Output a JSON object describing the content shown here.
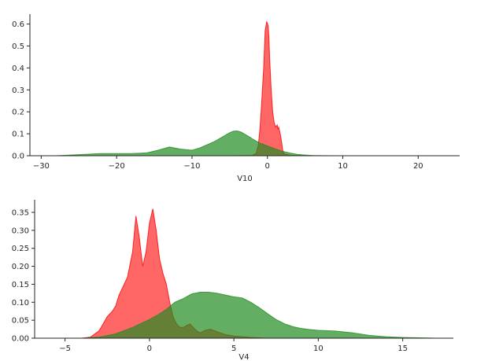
{
  "chart_data": [
    {
      "type": "area",
      "xlabel": "V10",
      "ylabel": "",
      "xlim": [
        -31.5,
        25.5
      ],
      "ylim": [
        0,
        0.645
      ],
      "xticks": [
        -30,
        -20,
        -10,
        0,
        10,
        20
      ],
      "xtick_labels": [
        "−30",
        "−20",
        "−10",
        "0",
        "10",
        "20"
      ],
      "yticks": [
        0.0,
        0.1,
        0.2,
        0.3,
        0.4,
        0.5,
        0.6
      ],
      "ytick_labels": [
        "0.0",
        "0.1",
        "0.2",
        "0.3",
        "0.4",
        "0.5",
        "0.6"
      ],
      "grid": false,
      "series": [
        {
          "color": "#ff0000",
          "fill_opacity": 0.6,
          "x": [
            -15,
            -5,
            -2,
            -1.5,
            -1.2,
            -1.0,
            -0.8,
            -0.5,
            -0.3,
            -0.1,
            0.0,
            0.1,
            0.2,
            0.3,
            0.5,
            0.7,
            0.9,
            1.1,
            1.3,
            1.4,
            1.5,
            1.7,
            1.9,
            2.0,
            2.2,
            3,
            5,
            10,
            20,
            24
          ],
          "values": [
            0,
            0,
            0.002,
            0.01,
            0.05,
            0.12,
            0.22,
            0.4,
            0.57,
            0.61,
            0.605,
            0.59,
            0.54,
            0.44,
            0.3,
            0.2,
            0.15,
            0.13,
            0.14,
            0.12,
            0.13,
            0.1,
            0.06,
            0.03,
            0.008,
            0.002,
            0.0005,
            0.0002,
            0.0001,
            0
          ]
        },
        {
          "color": "#228b22",
          "fill_opacity": 0.7,
          "x": [
            -28,
            -25,
            -22,
            -20,
            -18,
            -16,
            -14.5,
            -13,
            -11.5,
            -10,
            -9,
            -8,
            -7,
            -6,
            -5,
            -4.5,
            -4,
            -3.5,
            -3,
            -2.5,
            -2,
            -1.5,
            -1,
            0,
            1,
            2,
            3,
            4,
            5,
            6,
            7.5
          ],
          "values": [
            0,
            0.005,
            0.01,
            0.01,
            0.01,
            0.013,
            0.025,
            0.04,
            0.03,
            0.025,
            0.035,
            0.05,
            0.065,
            0.085,
            0.105,
            0.112,
            0.113,
            0.108,
            0.098,
            0.088,
            0.077,
            0.067,
            0.058,
            0.045,
            0.032,
            0.02,
            0.012,
            0.006,
            0.003,
            0.001,
            0
          ]
        }
      ]
    },
    {
      "type": "area",
      "xlabel": "V4",
      "ylabel": "",
      "xlim": [
        -6.8,
        18.0
      ],
      "ylim": [
        0,
        0.385
      ],
      "xticks": [
        -5,
        0,
        5,
        10,
        15
      ],
      "xtick_labels": [
        "−5",
        "0",
        "5",
        "10",
        "15"
      ],
      "yticks": [
        0.0,
        0.05,
        0.1,
        0.15,
        0.2,
        0.25,
        0.3,
        0.35
      ],
      "ytick_labels": [
        "0.00",
        "0.05",
        "0.10",
        "0.15",
        "0.20",
        "0.25",
        "0.30",
        "0.35"
      ],
      "grid": false,
      "series": [
        {
          "color": "#ff0000",
          "fill_opacity": 0.6,
          "x": [
            -4,
            -3.5,
            -3,
            -2.8,
            -2.5,
            -2.2,
            -2.0,
            -1.8,
            -1.5,
            -1.3,
            -1.0,
            -0.8,
            -0.6,
            -0.4,
            -0.2,
            0.0,
            0.2,
            0.4,
            0.6,
            0.8,
            1.0,
            1.2,
            1.4,
            1.6,
            1.8,
            2.0,
            2.2,
            2.4,
            2.6,
            2.8,
            3.0,
            3.3,
            3.6,
            4.0,
            4.5,
            5.0,
            5.5,
            6.0,
            7.0
          ],
          "values": [
            0,
            0.003,
            0.02,
            0.035,
            0.06,
            0.075,
            0.09,
            0.12,
            0.15,
            0.17,
            0.24,
            0.34,
            0.28,
            0.2,
            0.24,
            0.32,
            0.36,
            0.3,
            0.22,
            0.18,
            0.15,
            0.1,
            0.06,
            0.04,
            0.03,
            0.03,
            0.035,
            0.04,
            0.03,
            0.02,
            0.015,
            0.022,
            0.025,
            0.018,
            0.01,
            0.006,
            0.004,
            0.002,
            0
          ]
        },
        {
          "color": "#228b22",
          "fill_opacity": 0.7,
          "x": [
            -4,
            -3,
            -2,
            -1,
            0,
            0.5,
            1,
            1.5,
            2,
            2.5,
            3,
            3.5,
            4,
            4.5,
            5,
            5.5,
            6,
            6.5,
            7,
            7.5,
            8,
            8.5,
            9,
            9.5,
            10,
            11,
            12,
            13,
            14,
            15,
            16,
            17
          ],
          "values": [
            0,
            0.003,
            0.012,
            0.03,
            0.052,
            0.065,
            0.08,
            0.1,
            0.11,
            0.123,
            0.128,
            0.128,
            0.125,
            0.12,
            0.115,
            0.112,
            0.1,
            0.085,
            0.068,
            0.052,
            0.04,
            0.032,
            0.027,
            0.024,
            0.022,
            0.02,
            0.015,
            0.008,
            0.004,
            0.002,
            0.001,
            0
          ]
        }
      ]
    }
  ]
}
